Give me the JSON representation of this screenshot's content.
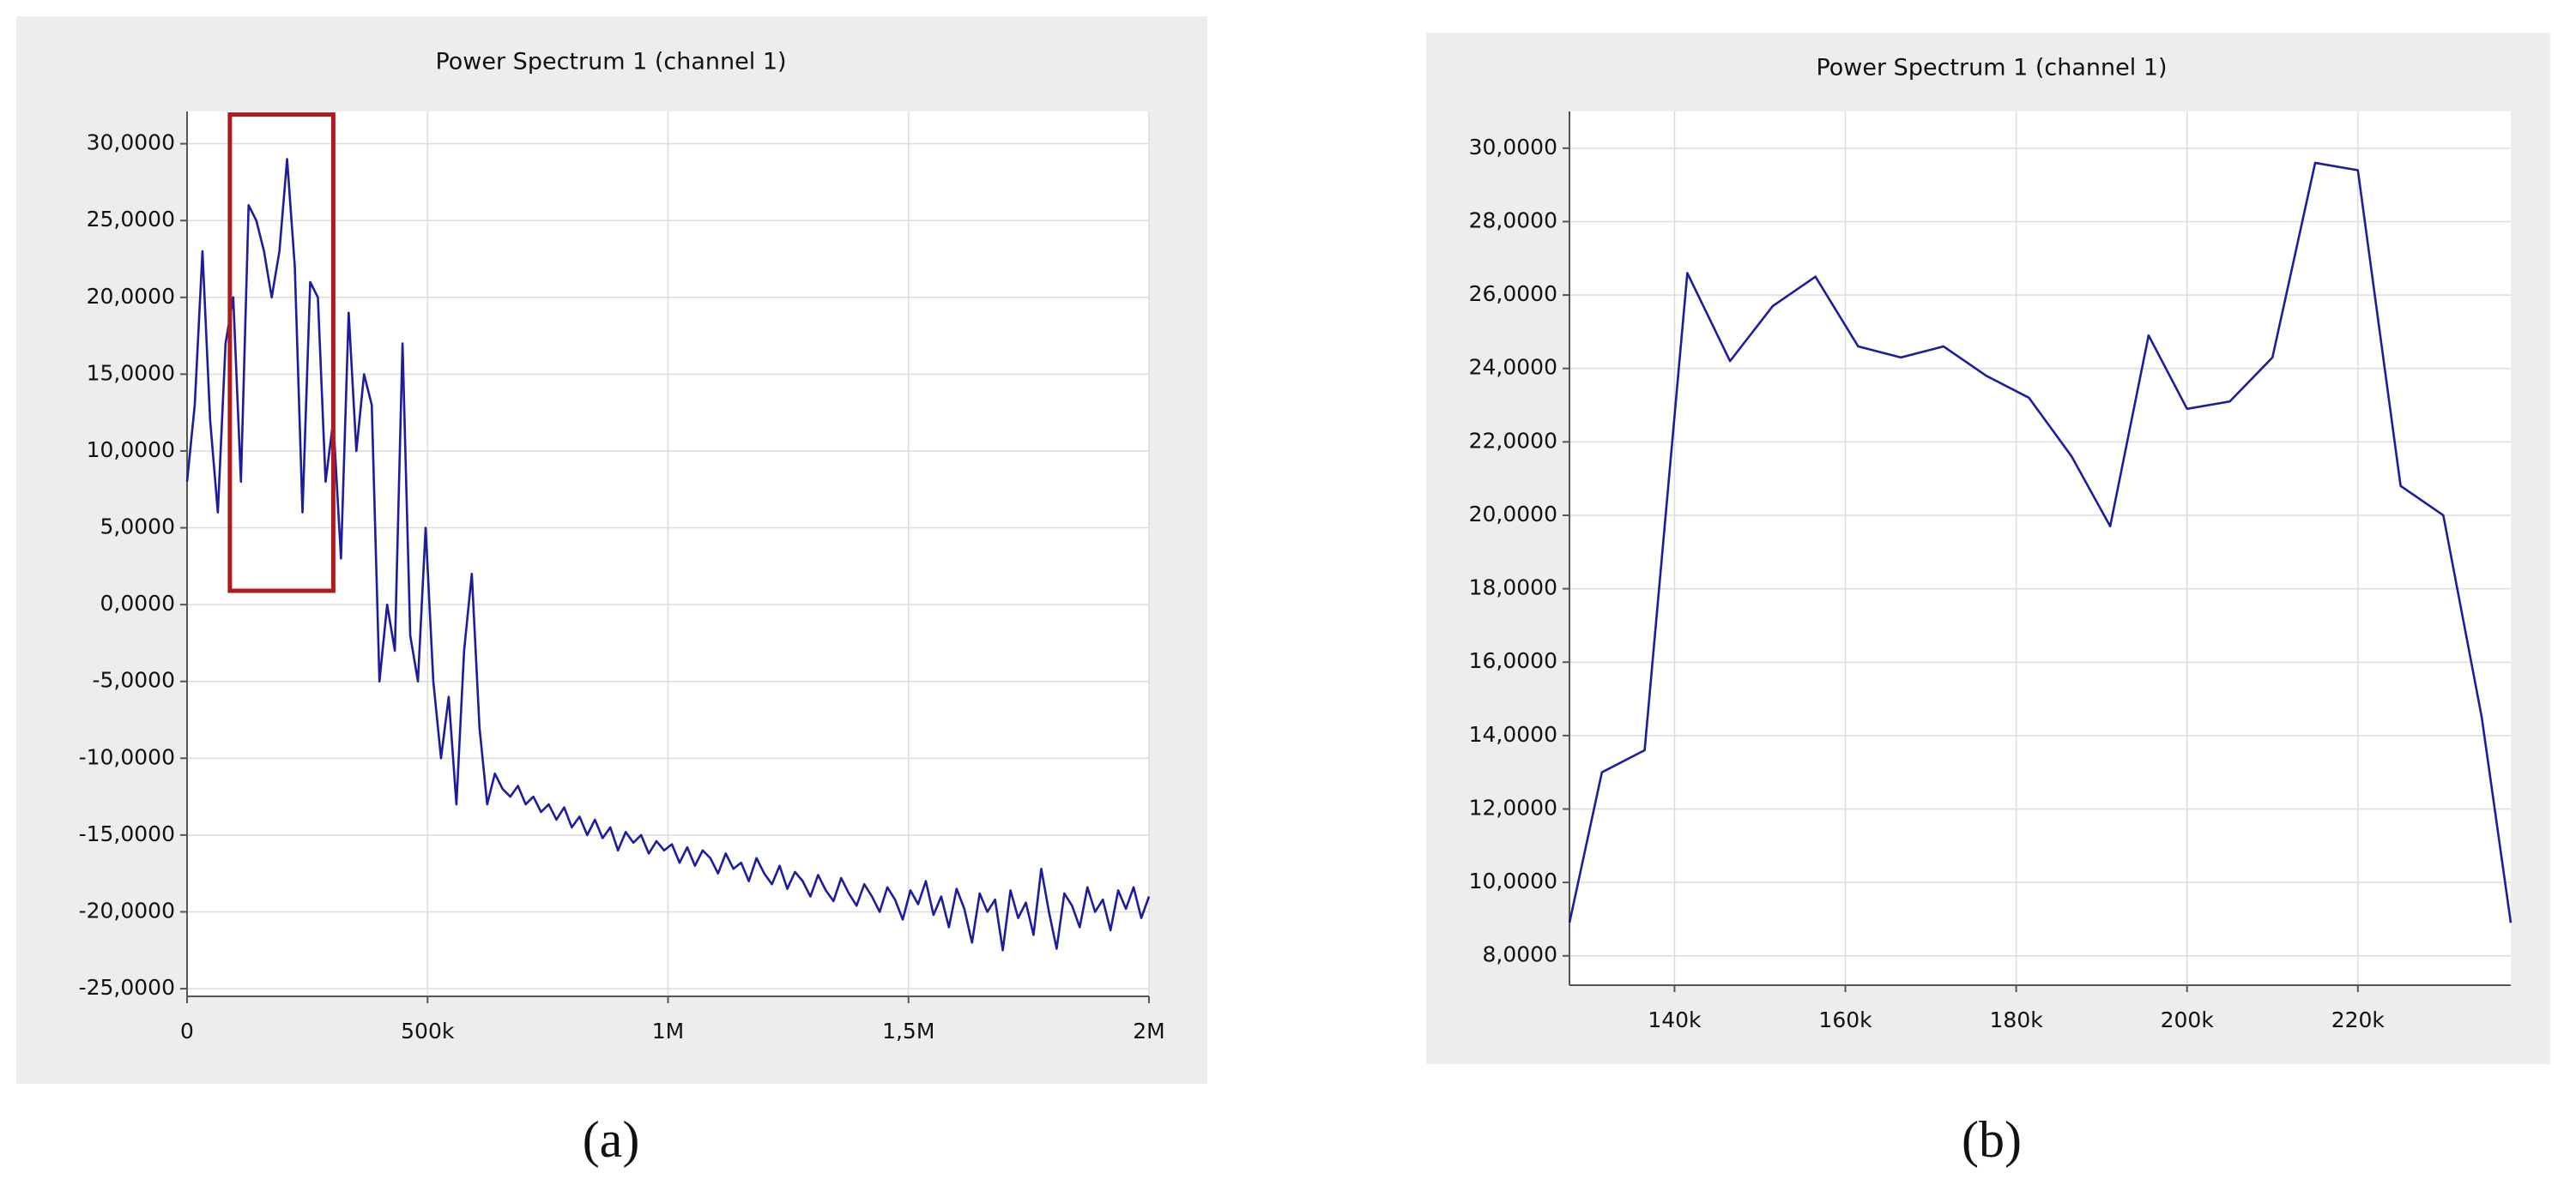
{
  "chart_data": [
    {
      "type": "line",
      "title": "Power Spectrum 1 (channel 1)",
      "panel_label": "(a)",
      "x": [
        0,
        16000,
        32000,
        48000,
        64000,
        80000,
        96000,
        112000,
        128000,
        144000,
        160000,
        176000,
        192000,
        208000,
        224000,
        240000,
        256000,
        272000,
        288000,
        304000,
        320000,
        336000,
        352000,
        368000,
        384000,
        400000,
        416000,
        432000,
        448000,
        464000,
        480000,
        496000,
        512000,
        528000,
        544000,
        560000,
        576000,
        592000,
        608000,
        624000,
        640000,
        656000,
        672000,
        688000,
        704000,
        720000,
        736000,
        752000,
        768000,
        784000,
        800000,
        816000,
        832000,
        848000,
        864000,
        880000,
        896000,
        912000,
        928000,
        944000,
        960000,
        976000,
        992000,
        1008000,
        1024000,
        1040000,
        1056000,
        1072000,
        1088000,
        1104000,
        1120000,
        1136000,
        1152000,
        1168000,
        1184000,
        1200000,
        1216000,
        1232000,
        1248000,
        1264000,
        1280000,
        1296000,
        1312000,
        1328000,
        1344000,
        1360000,
        1376000,
        1392000,
        1408000,
        1424000,
        1440000,
        1456000,
        1472000,
        1488000,
        1504000,
        1520000,
        1536000,
        1552000,
        1568000,
        1584000,
        1600000,
        1616000,
        1632000,
        1648000,
        1664000,
        1680000,
        1696000,
        1712000,
        1728000,
        1744000,
        1760000,
        1776000,
        1792000,
        1808000,
        1824000,
        1840000,
        1856000,
        1872000,
        1888000,
        1904000,
        1920000,
        1936000,
        1952000,
        1968000,
        1984000,
        2000000
      ],
      "series": [
        {
          "color": "#1c1c9e",
          "values": [
            8,
            13,
            23,
            12,
            6,
            17,
            20,
            8,
            26,
            25,
            23,
            20,
            23,
            29,
            22,
            6,
            21,
            20,
            8,
            12,
            3,
            19,
            10,
            15,
            13,
            -5,
            0,
            -3,
            17,
            -2,
            -5,
            5,
            -5,
            -10,
            -6,
            -13,
            -3,
            2,
            -8,
            -13,
            -11,
            -12,
            -12.5,
            -11.8,
            -13,
            -12.5,
            -13.5,
            -13,
            -14,
            -13.2,
            -14.5,
            -13.8,
            -15,
            -14,
            -15.2,
            -14.5,
            -16,
            -14.8,
            -15.5,
            -15,
            -16.2,
            -15.4,
            -16,
            -15.6,
            -16.8,
            -15.8,
            -17,
            -16,
            -16.5,
            -17.5,
            -16.2,
            -17.2,
            -16.8,
            -18,
            -16.5,
            -17.5,
            -18.2,
            -17,
            -18.5,
            -17.4,
            -18,
            -19,
            -17.6,
            -18.6,
            -19.3,
            -17.8,
            -18.8,
            -19.6,
            -18.2,
            -19,
            -20,
            -18.4,
            -19.2,
            -20.5,
            -18.6,
            -19.5,
            -18,
            -20.2,
            -19,
            -21,
            -18.5,
            -19.8,
            -22,
            -18.8,
            -20,
            -19.2,
            -22.5,
            -18.6,
            -20.4,
            -19.4,
            -21.5,
            -17.2,
            -20,
            -22.4,
            -18.8,
            -19.6,
            -21,
            -18.4,
            -20,
            -19.2,
            -21.2,
            -18.6,
            -19.8,
            -18.4,
            -20.4,
            -19
          ]
        }
      ],
      "xlim": [
        0,
        2000000
      ],
      "xticks": [
        0,
        {
          "value": 500000,
          "label": "500k"
        },
        {
          "value": 1000000,
          "label": "1M"
        },
        {
          "value": 1500000,
          "label": "1,5M"
        },
        {
          "value": 2000000,
          "label": "2M"
        }
      ],
      "ylim": [
        -25.5,
        32.1
      ],
      "yticks": [
        {
          "value": 30,
          "label": "30,0000"
        },
        {
          "value": 25,
          "label": "25,0000"
        },
        {
          "value": 20,
          "label": "20,0000"
        },
        {
          "value": 15,
          "label": "15,0000"
        },
        {
          "value": 10,
          "label": "10,0000"
        },
        {
          "value": 5,
          "label": "5,0000"
        },
        {
          "value": 0,
          "label": "0,0000"
        },
        {
          "value": -5,
          "label": "-5,0000"
        },
        {
          "value": -10,
          "label": "-10,0000"
        },
        {
          "value": -15,
          "label": "-15,0000"
        },
        {
          "value": -20,
          "label": "-20,0000"
        },
        {
          "value": -25,
          "label": "-25,0000"
        }
      ],
      "grid": true,
      "highlight_box": {
        "x": [
          89000,
          304000
        ],
        "y": [
          0.9,
          31.9
        ],
        "color": "#b0191e"
      }
    },
    {
      "type": "line",
      "title": "Power Spectrum 1 (channel 1)",
      "panel_label": "(b)",
      "x": [
        127700,
        131500,
        136500,
        141500,
        146500,
        151500,
        156500,
        161500,
        166500,
        171500,
        176500,
        181500,
        186500,
        191000,
        195500,
        200000,
        205000,
        210000,
        215000,
        220000,
        225000,
        230000,
        234500,
        237900
      ],
      "series": [
        {
          "color": "#1c1c9e",
          "values": [
            8.9,
            13.0,
            13.6,
            26.6,
            24.2,
            25.7,
            26.5,
            24.6,
            24.3,
            24.6,
            23.8,
            23.2,
            21.6,
            19.7,
            24.9,
            22.9,
            23.1,
            24.3,
            29.6,
            29.4,
            20.8,
            20.0,
            14.5,
            8.9
          ]
        }
      ],
      "xlim": [
        127700,
        237900
      ],
      "xticks": [
        {
          "value": 140000,
          "label": "140k"
        },
        {
          "value": 160000,
          "label": "160k"
        },
        {
          "value": 180000,
          "label": "180k"
        },
        {
          "value": 200000,
          "label": "200k"
        },
        {
          "value": 220000,
          "label": "220k"
        }
      ],
      "ylim": [
        7.2,
        31.0
      ],
      "yticks": [
        {
          "value": 30,
          "label": "30,0000"
        },
        {
          "value": 28,
          "label": "28,0000"
        },
        {
          "value": 26,
          "label": "26,0000"
        },
        {
          "value": 24,
          "label": "24,0000"
        },
        {
          "value": 22,
          "label": "22,0000"
        },
        {
          "value": 20,
          "label": "20,0000"
        },
        {
          "value": 18,
          "label": "18,0000"
        },
        {
          "value": 16,
          "label": "16,0000"
        },
        {
          "value": 14,
          "label": "14,0000"
        },
        {
          "value": 12,
          "label": "12,0000"
        },
        {
          "value": 10,
          "label": "10,0000"
        },
        {
          "value": 8,
          "label": "8,0000"
        }
      ],
      "grid": true
    }
  ]
}
